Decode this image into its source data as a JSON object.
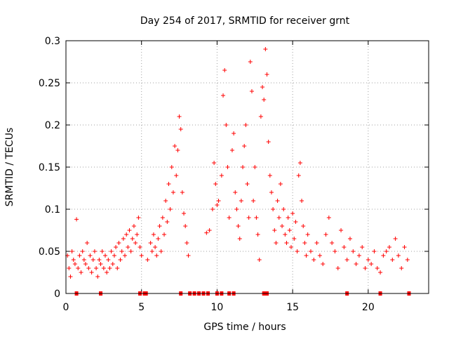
{
  "chart_data": {
    "type": "scatter",
    "title": "Day 254 of 2017, SRMTID for receiver grnt",
    "xlabel": "GPS time / hours",
    "ylabel": "SRMTID / TECUs",
    "xlim": [
      0,
      24
    ],
    "ylim": [
      0,
      0.3
    ],
    "xticks": [
      0,
      5,
      10,
      15,
      20
    ],
    "xtick_labels": [
      "0",
      "5",
      "10",
      "15",
      "20"
    ],
    "yticks": [
      0,
      0.05,
      0.1,
      0.15,
      0.2,
      0.25,
      0.3
    ],
    "ytick_labels": [
      "0",
      "0.05",
      "0.1",
      "0.15",
      "0.2",
      "0.25",
      "0.3"
    ],
    "grid": true,
    "marker": "+",
    "color": "#ff0000",
    "series": [
      {
        "name": "SRMTID",
        "points": [
          [
            0.1,
            0.045
          ],
          [
            0.2,
            0.03
          ],
          [
            0.3,
            0.02
          ],
          [
            0.4,
            0.05
          ],
          [
            0.5,
            0.04
          ],
          [
            0.6,
            0.035
          ],
          [
            0.7,
            0.088
          ],
          [
            0.8,
            0.03
          ],
          [
            0.9,
            0.045
          ],
          [
            1.0,
            0.025
          ],
          [
            1.1,
            0.05
          ],
          [
            1.2,
            0.04
          ],
          [
            1.3,
            0.035
          ],
          [
            1.4,
            0.06
          ],
          [
            1.5,
            0.03
          ],
          [
            1.6,
            0.045
          ],
          [
            1.7,
            0.025
          ],
          [
            1.8,
            0.04
          ],
          [
            1.9,
            0.05
          ],
          [
            2.0,
            0.03
          ],
          [
            2.1,
            0.02
          ],
          [
            2.2,
            0.04
          ],
          [
            2.3,
            0.035
          ],
          [
            2.4,
            0.05
          ],
          [
            2.5,
            0.03
          ],
          [
            2.6,
            0.045
          ],
          [
            2.7,
            0.025
          ],
          [
            2.8,
            0.04
          ],
          [
            2.9,
            0.03
          ],
          [
            3.0,
            0.05
          ],
          [
            3.1,
            0.035
          ],
          [
            3.2,
            0.045
          ],
          [
            3.3,
            0.055
          ],
          [
            3.4,
            0.03
          ],
          [
            3.5,
            0.06
          ],
          [
            3.6,
            0.04
          ],
          [
            3.7,
            0.05
          ],
          [
            3.8,
            0.065
          ],
          [
            3.9,
            0.045
          ],
          [
            4.0,
            0.07
          ],
          [
            4.1,
            0.055
          ],
          [
            4.2,
            0.075
          ],
          [
            4.3,
            0.05
          ],
          [
            4.4,
            0.065
          ],
          [
            4.5,
            0.08
          ],
          [
            4.6,
            0.06
          ],
          [
            4.7,
            0.07
          ],
          [
            4.8,
            0.09
          ],
          [
            4.9,
            0.055
          ],
          [
            5.0,
            0.045
          ],
          [
            5.4,
            0.04
          ],
          [
            5.6,
            0.06
          ],
          [
            5.7,
            0.05
          ],
          [
            5.8,
            0.07
          ],
          [
            5.9,
            0.055
          ],
          [
            6.0,
            0.045
          ],
          [
            6.1,
            0.065
          ],
          [
            6.2,
            0.08
          ],
          [
            6.3,
            0.05
          ],
          [
            6.4,
            0.09
          ],
          [
            6.5,
            0.07
          ],
          [
            6.6,
            0.11
          ],
          [
            6.7,
            0.085
          ],
          [
            6.8,
            0.13
          ],
          [
            6.9,
            0.1
          ],
          [
            7.0,
            0.15
          ],
          [
            7.1,
            0.12
          ],
          [
            7.2,
            0.175
          ],
          [
            7.3,
            0.14
          ],
          [
            7.4,
            0.17
          ],
          [
            7.5,
            0.21
          ],
          [
            7.6,
            0.195
          ],
          [
            7.7,
            0.12
          ],
          [
            7.8,
            0.095
          ],
          [
            7.9,
            0.08
          ],
          [
            8.0,
            0.06
          ],
          [
            8.1,
            0.045
          ],
          [
            9.3,
            0.072
          ],
          [
            9.5,
            0.075
          ],
          [
            9.7,
            0.1
          ],
          [
            9.8,
            0.155
          ],
          [
            9.9,
            0.13
          ],
          [
            10.0,
            0.105
          ],
          [
            10.1,
            0.11
          ],
          [
            10.3,
            0.14
          ],
          [
            10.4,
            0.235
          ],
          [
            10.5,
            0.265
          ],
          [
            10.6,
            0.2
          ],
          [
            10.7,
            0.15
          ],
          [
            10.8,
            0.09
          ],
          [
            11.0,
            0.17
          ],
          [
            11.1,
            0.19
          ],
          [
            11.2,
            0.12
          ],
          [
            11.3,
            0.1
          ],
          [
            11.4,
            0.08
          ],
          [
            11.5,
            0.065
          ],
          [
            11.6,
            0.11
          ],
          [
            11.7,
            0.15
          ],
          [
            11.8,
            0.175
          ],
          [
            11.9,
            0.2
          ],
          [
            12.0,
            0.13
          ],
          [
            12.1,
            0.09
          ],
          [
            12.2,
            0.275
          ],
          [
            12.3,
            0.24
          ],
          [
            12.4,
            0.11
          ],
          [
            12.5,
            0.15
          ],
          [
            12.6,
            0.09
          ],
          [
            12.7,
            0.07
          ],
          [
            12.8,
            0.04
          ],
          [
            12.9,
            0.21
          ],
          [
            13.0,
            0.245
          ],
          [
            13.1,
            0.23
          ],
          [
            13.2,
            0.29
          ],
          [
            13.3,
            0.26
          ],
          [
            13.4,
            0.18
          ],
          [
            13.5,
            0.14
          ],
          [
            13.6,
            0.12
          ],
          [
            13.7,
            0.1
          ],
          [
            13.8,
            0.075
          ],
          [
            13.9,
            0.06
          ],
          [
            14.0,
            0.11
          ],
          [
            14.1,
            0.09
          ],
          [
            14.2,
            0.13
          ],
          [
            14.3,
            0.08
          ],
          [
            14.4,
            0.1
          ],
          [
            14.5,
            0.07
          ],
          [
            14.6,
            0.06
          ],
          [
            14.7,
            0.09
          ],
          [
            14.8,
            0.075
          ],
          [
            14.9,
            0.055
          ],
          [
            15.0,
            0.095
          ],
          [
            15.1,
            0.065
          ],
          [
            15.2,
            0.085
          ],
          [
            15.3,
            0.05
          ],
          [
            15.4,
            0.14
          ],
          [
            15.5,
            0.155
          ],
          [
            15.6,
            0.11
          ],
          [
            15.7,
            0.08
          ],
          [
            15.8,
            0.06
          ],
          [
            15.9,
            0.045
          ],
          [
            16.0,
            0.07
          ],
          [
            16.2,
            0.05
          ],
          [
            16.4,
            0.04
          ],
          [
            16.6,
            0.06
          ],
          [
            16.8,
            0.045
          ],
          [
            17.0,
            0.035
          ],
          [
            17.2,
            0.07
          ],
          [
            17.4,
            0.09
          ],
          [
            17.6,
            0.06
          ],
          [
            17.8,
            0.05
          ],
          [
            18.0,
            0.03
          ],
          [
            18.2,
            0.075
          ],
          [
            18.4,
            0.055
          ],
          [
            18.6,
            0.04
          ],
          [
            18.8,
            0.065
          ],
          [
            19.0,
            0.05
          ],
          [
            19.2,
            0.035
          ],
          [
            19.4,
            0.045
          ],
          [
            19.6,
            0.055
          ],
          [
            19.8,
            0.03
          ],
          [
            20.0,
            0.04
          ],
          [
            20.2,
            0.035
          ],
          [
            20.4,
            0.05
          ],
          [
            20.6,
            0.03
          ],
          [
            20.8,
            0.025
          ],
          [
            21.0,
            0.045
          ],
          [
            21.2,
            0.05
          ],
          [
            21.4,
            0.055
          ],
          [
            21.6,
            0.04
          ],
          [
            21.8,
            0.065
          ],
          [
            22.0,
            0.045
          ],
          [
            22.2,
            0.03
          ],
          [
            22.4,
            0.055
          ],
          [
            22.6,
            0.04
          ]
        ]
      }
    ],
    "zero_markers": [
      0.7,
      2.3,
      4.9,
      5.2,
      5.3,
      7.6,
      8.2,
      8.5,
      8.8,
      9.1,
      9.4,
      10.0,
      10.3,
      10.8,
      11.1,
      13.1,
      13.3,
      18.6,
      20.8,
      22.7
    ]
  }
}
